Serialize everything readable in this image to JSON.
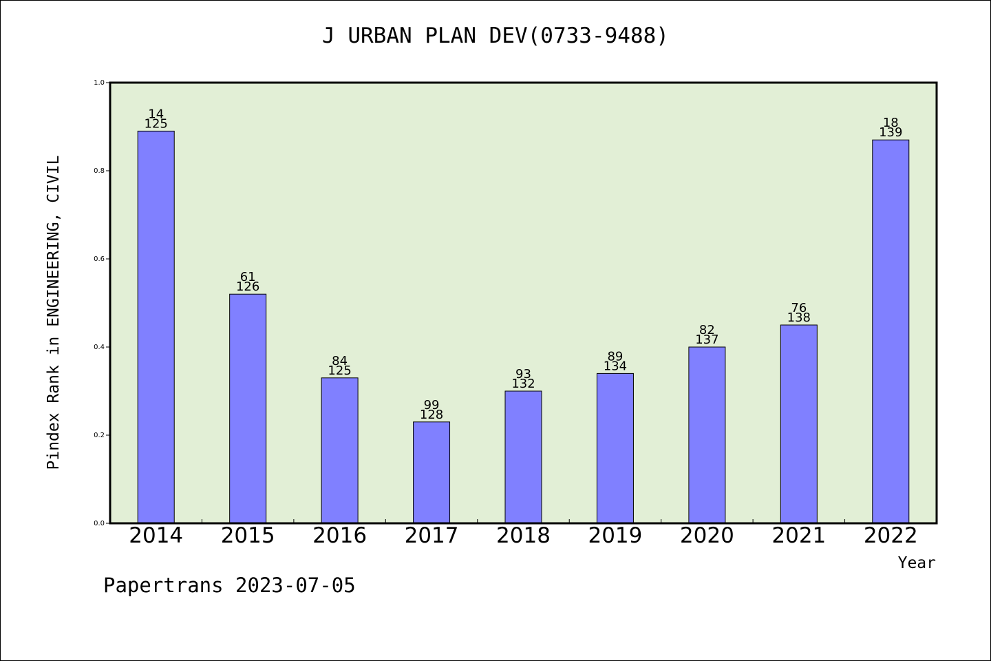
{
  "footer": "Papertrans 2023-07-05",
  "colors": {
    "plot_background": "#e2efd6",
    "bar_fill": "#8080ff",
    "bar_stroke": "#000000"
  },
  "chart_data": {
    "type": "bar",
    "title": "J URBAN PLAN DEV(0733-9488)",
    "xlabel": "Year",
    "ylabel": "Pindex Rank in ENGINEERING, CIVIL",
    "ylim": [
      0,
      1.0
    ],
    "yticks": [
      "0.0",
      "0.2",
      "0.4",
      "0.6",
      "0.8",
      "1.0"
    ],
    "grid": false,
    "categories": [
      "2014",
      "2015",
      "2016",
      "2017",
      "2018",
      "2019",
      "2020",
      "2021",
      "2022"
    ],
    "values": [
      0.89,
      0.52,
      0.33,
      0.23,
      0.3,
      0.34,
      0.4,
      0.45,
      0.87
    ],
    "rank": [
      "14",
      "61",
      "84",
      "99",
      "93",
      "89",
      "82",
      "76",
      "18"
    ],
    "total": [
      "125",
      "126",
      "125",
      "128",
      "132",
      "134",
      "137",
      "138",
      "139"
    ]
  }
}
